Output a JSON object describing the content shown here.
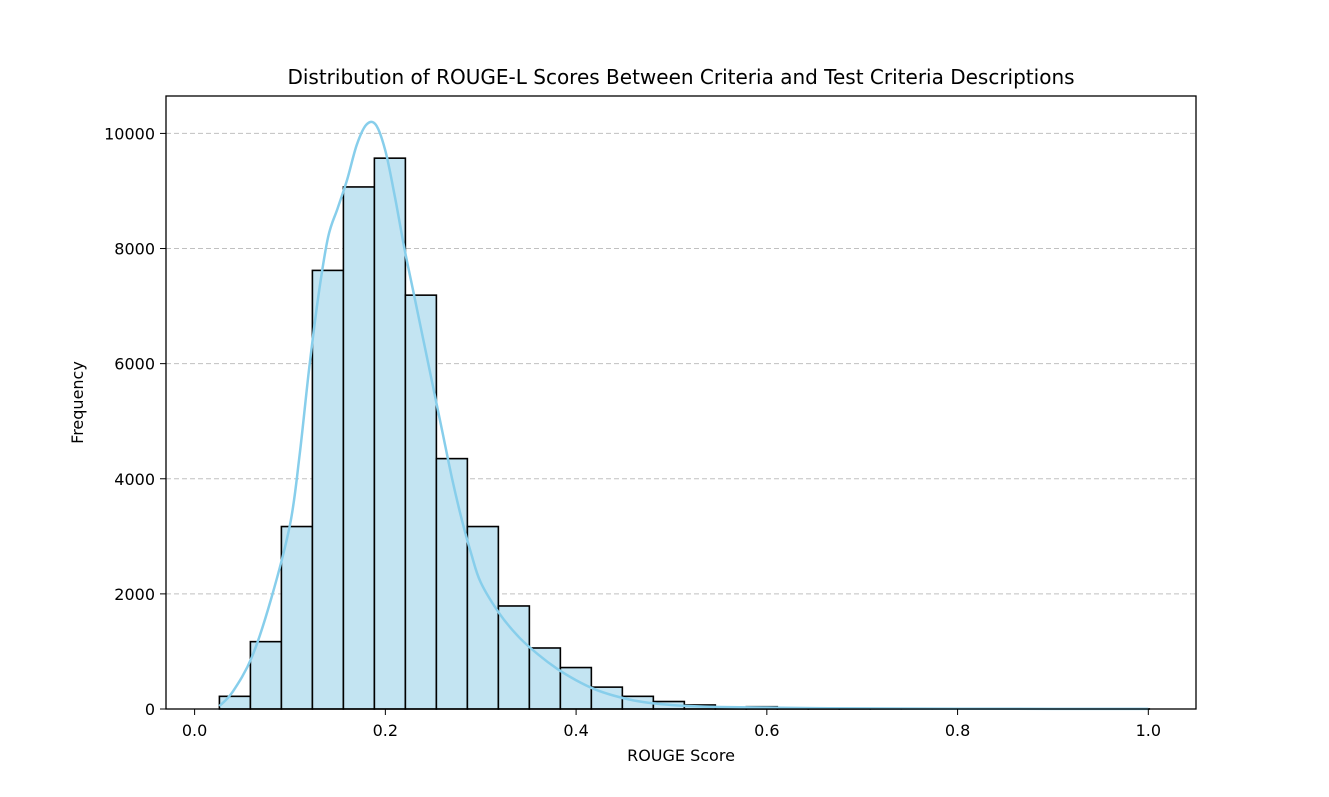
{
  "chart_data": {
    "type": "bar",
    "title": "Distribution of ROUGE-L Scores Between Criteria and Test Criteria Descriptions",
    "xlabel": "ROUGE Score",
    "ylabel": "Frequency",
    "xlim": [
      -0.03,
      1.05
    ],
    "ylim": [
      0,
      10650
    ],
    "grid": "y-dashed",
    "x_ticks": [
      {
        "value": 0.0,
        "label": "0.0"
      },
      {
        "value": 0.2,
        "label": "0.2"
      },
      {
        "value": 0.4,
        "label": "0.4"
      },
      {
        "value": 0.6,
        "label": "0.6"
      },
      {
        "value": 0.8,
        "label": "0.8"
      },
      {
        "value": 1.0,
        "label": "1.0"
      }
    ],
    "y_ticks": [
      {
        "value": 0,
        "label": "0"
      },
      {
        "value": 2000,
        "label": "2000"
      },
      {
        "value": 4000,
        "label": "4000"
      },
      {
        "value": 6000,
        "label": "6000"
      },
      {
        "value": 8000,
        "label": "8000"
      },
      {
        "value": 10000,
        "label": "10000"
      }
    ],
    "bin_start": 0.026,
    "bin_width": 0.0325,
    "values": [
      220,
      1170,
      3170,
      7620,
      9070,
      9570,
      7190,
      4350,
      3170,
      1790,
      1060,
      720,
      380,
      220,
      130,
      70,
      30,
      40,
      15,
      10,
      8,
      6,
      4,
      3,
      2,
      2,
      1,
      1,
      1,
      1
    ],
    "colors": {
      "bar_fill": "#c3e4f2",
      "bar_edge": "#000000",
      "kde_line": "#87ceeb",
      "grid": "#c0c0c0"
    },
    "kde": {
      "x": [
        0.026,
        0.04,
        0.06,
        0.08,
        0.1,
        0.11,
        0.12,
        0.13,
        0.14,
        0.15,
        0.16,
        0.17,
        0.18,
        0.19,
        0.2,
        0.21,
        0.22,
        0.23,
        0.24,
        0.25,
        0.26,
        0.27,
        0.28,
        0.29,
        0.3,
        0.32,
        0.34,
        0.36,
        0.38,
        0.4,
        0.42,
        0.44,
        0.46,
        0.48,
        0.5,
        0.52,
        0.55,
        0.6,
        0.65,
        0.7,
        0.8,
        0.9,
        1.0
      ],
      "y": [
        50,
        300,
        900,
        1900,
        3200,
        4400,
        5900,
        7200,
        8200,
        8700,
        9200,
        9800,
        10150,
        10150,
        9700,
        8900,
        8000,
        7200,
        6400,
        5600,
        4800,
        4000,
        3300,
        2700,
        2200,
        1650,
        1250,
        950,
        700,
        500,
        340,
        230,
        150,
        100,
        70,
        50,
        35,
        25,
        15,
        10,
        5,
        3,
        2
      ]
    }
  }
}
